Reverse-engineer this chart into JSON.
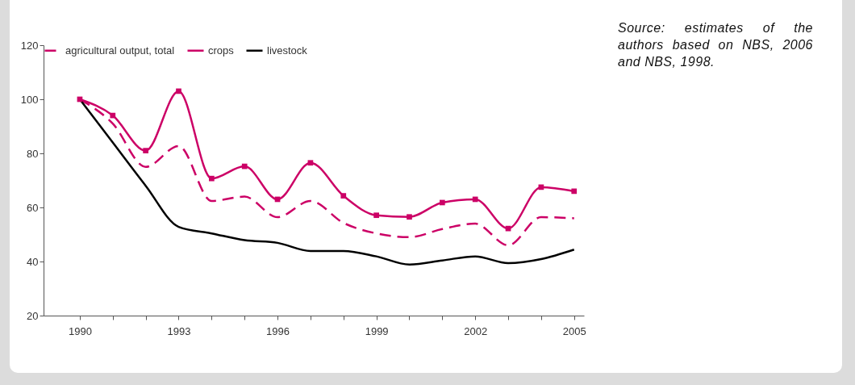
{
  "chart_data": {
    "type": "line",
    "x": [
      1990,
      1991,
      1992,
      1993,
      1994,
      1995,
      1996,
      1997,
      1998,
      1999,
      2000,
      2001,
      2002,
      2003,
      2004,
      2005
    ],
    "series": [
      {
        "name": "agricultural output, total",
        "color": "#cc0066",
        "line_style": "dashed",
        "values": [
          100,
          91,
          75,
          82.7,
          62.4,
          64,
          56.4,
          62.4,
          54.3,
          50.4,
          49,
          52,
          54,
          46,
          56.4,
          56
        ]
      },
      {
        "name": "crops",
        "color": "#cc0066",
        "line_style": "solid",
        "marker": "square",
        "values": [
          100,
          94,
          81,
          103,
          70.7,
          75.2,
          63,
          76.5,
          64.3,
          57.1,
          56.5,
          61.8,
          63,
          52.2,
          67.5,
          66
        ]
      },
      {
        "name": "livestock",
        "color": "#000000",
        "line_style": "solid",
        "values": [
          100,
          84,
          68,
          52.8,
          50.4,
          47.9,
          46.9,
          43.9,
          43.9,
          41.9,
          38.9,
          40.4,
          41.9,
          39.4,
          40.9,
          44.4
        ]
      }
    ],
    "xlim": [
      1988.9,
      2005.3
    ],
    "xticks": [
      1990,
      {
        "value": 1991,
        "label": null
      },
      {
        "value": 1992,
        "label": null
      },
      1993,
      {
        "value": 1994,
        "label": null
      },
      {
        "value": 1995,
        "label": null
      },
      1996,
      {
        "value": 1997,
        "label": null
      },
      {
        "value": 1998,
        "label": null
      },
      1999,
      {
        "value": 2000,
        "label": null
      },
      {
        "value": 2001,
        "label": null
      },
      2002,
      {
        "value": 2003,
        "label": null
      },
      {
        "value": 2004,
        "label": null
      },
      2005
    ],
    "ylim": [
      20,
      120
    ],
    "yticks": [
      20,
      40,
      60,
      80,
      100,
      120
    ],
    "grid": false,
    "legend": "top",
    "annotations": [
      "Source: estimates of the authors based on NBS, 2006 and NBS, 1998."
    ]
  }
}
